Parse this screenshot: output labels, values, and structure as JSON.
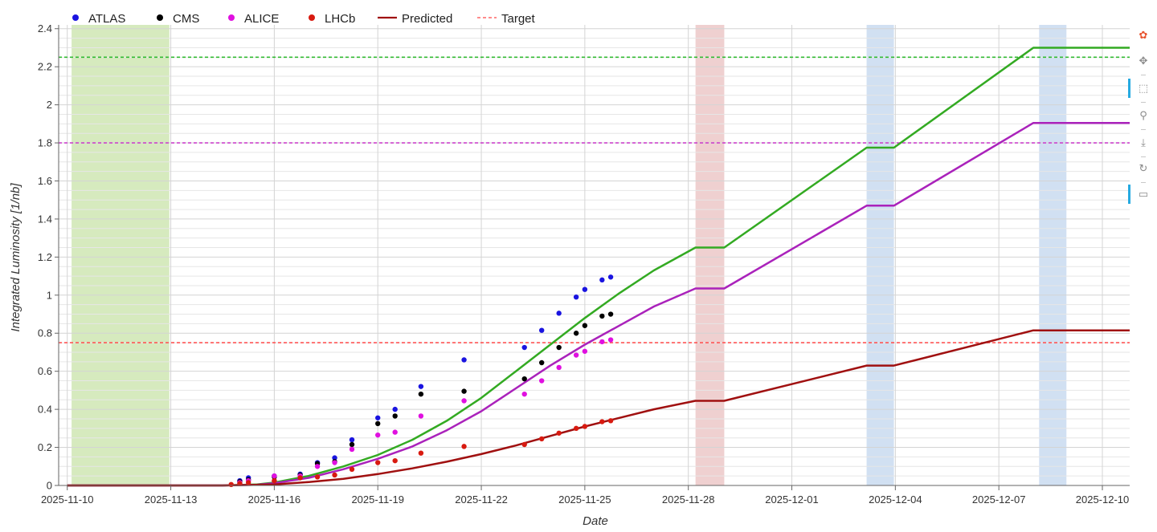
{
  "chart_data": {
    "type": "scatter",
    "xlabel": "Date",
    "ylabel": "Integrated Luminosity [1/nb]",
    "x_axis": "date",
    "xlim": [
      "2025-11-09T18:00",
      "2025-12-10T19:00"
    ],
    "ylim": [
      0,
      2.42
    ],
    "x_ticks": [
      "2025-11-10",
      "2025-11-13",
      "2025-11-16",
      "2025-11-19",
      "2025-11-22",
      "2025-11-25",
      "2025-11-28",
      "2025-12-01",
      "2025-12-04",
      "2025-12-07",
      "2025-12-10"
    ],
    "y_ticks": [
      "0",
      "0.2",
      "0.4",
      "0.6",
      "0.8",
      "1",
      "1.2",
      "1.4",
      "1.6",
      "1.8",
      "2",
      "2.2",
      "2.4"
    ],
    "grid": true,
    "legend_position": "top-left, outside plot",
    "legend": [
      {
        "label": "ATLAS",
        "marker": "dot",
        "color": "#1a14e0"
      },
      {
        "label": "CMS",
        "marker": "dot",
        "color": "#000000"
      },
      {
        "label": "ALICE",
        "marker": "dot",
        "color": "#e010e0"
      },
      {
        "label": "LHCb",
        "marker": "dot",
        "color": "#d81a10"
      },
      {
        "label": "Predicted",
        "marker": "line",
        "color": "#a01010"
      },
      {
        "label": "Target",
        "marker": "dashed-line",
        "color": "#ff6666"
      }
    ],
    "shaded_periods": [
      {
        "start": "2025-11-10T03:00",
        "end": "2025-11-12T23:00",
        "color": "#cfe6b3"
      },
      {
        "start": "2025-11-28T05:00",
        "end": "2025-11-29T01:00",
        "color": "#ecc8c8"
      },
      {
        "start": "2025-12-03T04:00",
        "end": "2025-12-03T23:00",
        "color": "#c9daf0"
      },
      {
        "start": "2025-12-08T04:00",
        "end": "2025-12-08T23:00",
        "color": "#c9daf0"
      }
    ],
    "targets": [
      {
        "y": 2.25,
        "color": "#33bb33"
      },
      {
        "y": 1.8,
        "color": "#cc44cc"
      },
      {
        "y": 0.75,
        "color": "#ff5555"
      }
    ],
    "predicted": [
      {
        "color": "#33aa22",
        "points": [
          [
            "2025-11-10T00:00",
            0
          ],
          [
            "2025-11-14T12:00",
            0
          ],
          [
            "2025-11-15T12:00",
            0.005
          ],
          [
            "2025-11-16T00:00",
            0.015
          ],
          [
            "2025-11-17T00:00",
            0.05
          ],
          [
            "2025-11-18T00:00",
            0.1
          ],
          [
            "2025-11-19T00:00",
            0.16
          ],
          [
            "2025-11-20T00:00",
            0.24
          ],
          [
            "2025-11-21T00:00",
            0.34
          ],
          [
            "2025-11-22T00:00",
            0.46
          ],
          [
            "2025-11-23T00:00",
            0.6
          ],
          [
            "2025-11-24T00:00",
            0.74
          ],
          [
            "2025-11-25T00:00",
            0.88
          ],
          [
            "2025-11-26T00:00",
            1.01
          ],
          [
            "2025-11-27T00:00",
            1.13
          ],
          [
            "2025-11-28T05:00",
            1.25
          ],
          [
            "2025-11-29T01:00",
            1.25
          ],
          [
            "2025-12-03T04:00",
            1.775
          ],
          [
            "2025-12-03T23:00",
            1.775
          ],
          [
            "2025-12-08T00:00",
            2.3
          ],
          [
            "2025-12-10T19:00",
            2.3
          ]
        ]
      },
      {
        "color": "#aa22bb",
        "points": [
          [
            "2025-11-10T00:00",
            0
          ],
          [
            "2025-11-14T12:00",
            0
          ],
          [
            "2025-11-15T12:00",
            0.004
          ],
          [
            "2025-11-16T00:00",
            0.012
          ],
          [
            "2025-11-17T00:00",
            0.04
          ],
          [
            "2025-11-18T00:00",
            0.085
          ],
          [
            "2025-11-19T00:00",
            0.14
          ],
          [
            "2025-11-20T00:00",
            0.205
          ],
          [
            "2025-11-21T00:00",
            0.29
          ],
          [
            "2025-11-22T00:00",
            0.39
          ],
          [
            "2025-11-23T00:00",
            0.51
          ],
          [
            "2025-11-24T00:00",
            0.63
          ],
          [
            "2025-11-25T00:00",
            0.74
          ],
          [
            "2025-11-26T00:00",
            0.84
          ],
          [
            "2025-11-27T00:00",
            0.94
          ],
          [
            "2025-11-28T05:00",
            1.035
          ],
          [
            "2025-11-29T01:00",
            1.035
          ],
          [
            "2025-12-03T04:00",
            1.47
          ],
          [
            "2025-12-03T23:00",
            1.47
          ],
          [
            "2025-12-08T00:00",
            1.905
          ],
          [
            "2025-12-10T19:00",
            1.905
          ]
        ]
      },
      {
        "color": "#a01010",
        "points": [
          [
            "2025-11-10T00:00",
            0
          ],
          [
            "2025-11-14T12:00",
            0
          ],
          [
            "2025-11-16T00:00",
            0.005
          ],
          [
            "2025-11-17T00:00",
            0.018
          ],
          [
            "2025-11-18T00:00",
            0.035
          ],
          [
            "2025-11-19T00:00",
            0.06
          ],
          [
            "2025-11-20T00:00",
            0.09
          ],
          [
            "2025-11-21T00:00",
            0.125
          ],
          [
            "2025-11-22T00:00",
            0.165
          ],
          [
            "2025-11-23T00:00",
            0.21
          ],
          [
            "2025-11-24T00:00",
            0.26
          ],
          [
            "2025-11-25T00:00",
            0.31
          ],
          [
            "2025-11-26T00:00",
            0.355
          ],
          [
            "2025-11-27T00:00",
            0.4
          ],
          [
            "2025-11-28T05:00",
            0.445
          ],
          [
            "2025-11-29T01:00",
            0.445
          ],
          [
            "2025-12-03T04:00",
            0.63
          ],
          [
            "2025-12-03T23:00",
            0.63
          ],
          [
            "2025-12-08T00:00",
            0.815
          ],
          [
            "2025-12-10T19:00",
            0.815
          ]
        ]
      }
    ],
    "series": [
      {
        "name": "ATLAS",
        "color": "#1a14e0",
        "points": [
          [
            "2025-11-15T00:00",
            0.025
          ],
          [
            "2025-11-15T06:00",
            0.04
          ],
          [
            "2025-11-16T00:00",
            0.05
          ],
          [
            "2025-11-16T18:00",
            0.06
          ],
          [
            "2025-11-17T06:00",
            0.12
          ],
          [
            "2025-11-17T18:00",
            0.145
          ],
          [
            "2025-11-18T06:00",
            0.24
          ],
          [
            "2025-11-19T00:00",
            0.355
          ],
          [
            "2025-11-19T12:00",
            0.4
          ],
          [
            "2025-11-20T06:00",
            0.52
          ],
          [
            "2025-11-21T12:00",
            0.66
          ],
          [
            "2025-11-23T06:00",
            0.725
          ],
          [
            "2025-11-23T18:00",
            0.815
          ],
          [
            "2025-11-24T06:00",
            0.905
          ],
          [
            "2025-11-24T18:00",
            0.99
          ],
          [
            "2025-11-25T00:00",
            1.03
          ],
          [
            "2025-11-25T12:00",
            1.08
          ],
          [
            "2025-11-25T18:00",
            1.095
          ]
        ]
      },
      {
        "name": "CMS",
        "color": "#000000",
        "points": [
          [
            "2025-11-15T00:00",
            0.02
          ],
          [
            "2025-11-15T06:00",
            0.03
          ],
          [
            "2025-11-16T00:00",
            0.045
          ],
          [
            "2025-11-16T18:00",
            0.055
          ],
          [
            "2025-11-17T06:00",
            0.115
          ],
          [
            "2025-11-17T18:00",
            0.125
          ],
          [
            "2025-11-18T06:00",
            0.215
          ],
          [
            "2025-11-19T00:00",
            0.325
          ],
          [
            "2025-11-19T12:00",
            0.365
          ],
          [
            "2025-11-20T06:00",
            0.48
          ],
          [
            "2025-11-21T12:00",
            0.495
          ],
          [
            "2025-11-23T06:00",
            0.56
          ],
          [
            "2025-11-23T18:00",
            0.645
          ],
          [
            "2025-11-24T06:00",
            0.725
          ],
          [
            "2025-11-24T18:00",
            0.8
          ],
          [
            "2025-11-25T00:00",
            0.84
          ],
          [
            "2025-11-25T12:00",
            0.89
          ],
          [
            "2025-11-25T18:00",
            0.9
          ]
        ]
      },
      {
        "name": "ALICE",
        "color": "#e010e0",
        "points": [
          [
            "2025-11-15T00:00",
            0.015
          ],
          [
            "2025-11-15T06:00",
            0.025
          ],
          [
            "2025-11-16T00:00",
            0.05
          ],
          [
            "2025-11-16T18:00",
            0.05
          ],
          [
            "2025-11-17T06:00",
            0.1
          ],
          [
            "2025-11-17T18:00",
            0.12
          ],
          [
            "2025-11-18T06:00",
            0.19
          ],
          [
            "2025-11-19T00:00",
            0.265
          ],
          [
            "2025-11-19T12:00",
            0.28
          ],
          [
            "2025-11-20T06:00",
            0.365
          ],
          [
            "2025-11-21T12:00",
            0.445
          ],
          [
            "2025-11-23T06:00",
            0.48
          ],
          [
            "2025-11-23T18:00",
            0.55
          ],
          [
            "2025-11-24T06:00",
            0.62
          ],
          [
            "2025-11-24T18:00",
            0.685
          ],
          [
            "2025-11-25T00:00",
            0.705
          ],
          [
            "2025-11-25T12:00",
            0.755
          ],
          [
            "2025-11-25T18:00",
            0.765
          ]
        ]
      },
      {
        "name": "LHCb",
        "color": "#d81a10",
        "points": [
          [
            "2025-11-14T18:00",
            0.005
          ],
          [
            "2025-11-15T00:00",
            0.01
          ],
          [
            "2025-11-15T06:00",
            0.015
          ],
          [
            "2025-11-16T00:00",
            0.025
          ],
          [
            "2025-11-16T18:00",
            0.04
          ],
          [
            "2025-11-17T06:00",
            0.045
          ],
          [
            "2025-11-17T18:00",
            0.055
          ],
          [
            "2025-11-18T06:00",
            0.085
          ],
          [
            "2025-11-19T00:00",
            0.12
          ],
          [
            "2025-11-19T12:00",
            0.13
          ],
          [
            "2025-11-20T06:00",
            0.17
          ],
          [
            "2025-11-21T12:00",
            0.205
          ],
          [
            "2025-11-23T06:00",
            0.215
          ],
          [
            "2025-11-23T18:00",
            0.245
          ],
          [
            "2025-11-24T06:00",
            0.275
          ],
          [
            "2025-11-24T18:00",
            0.3
          ],
          [
            "2025-11-25T00:00",
            0.31
          ],
          [
            "2025-11-25T12:00",
            0.335
          ],
          [
            "2025-11-25T18:00",
            0.34
          ]
        ]
      }
    ]
  },
  "toolbar": {
    "tools": [
      {
        "name": "logo-icon",
        "glyph": "✿",
        "color": "#e8542f"
      },
      {
        "name": "pan-icon",
        "glyph": "✥"
      },
      {
        "name": "box-zoom-icon",
        "glyph": "⬚",
        "active": true
      },
      {
        "name": "wheel-zoom-icon",
        "glyph": "⚲"
      },
      {
        "name": "save-icon",
        "glyph": "⤓"
      },
      {
        "name": "reset-icon",
        "glyph": "↻"
      },
      {
        "name": "hover-icon",
        "glyph": "▭",
        "active": true
      }
    ]
  }
}
